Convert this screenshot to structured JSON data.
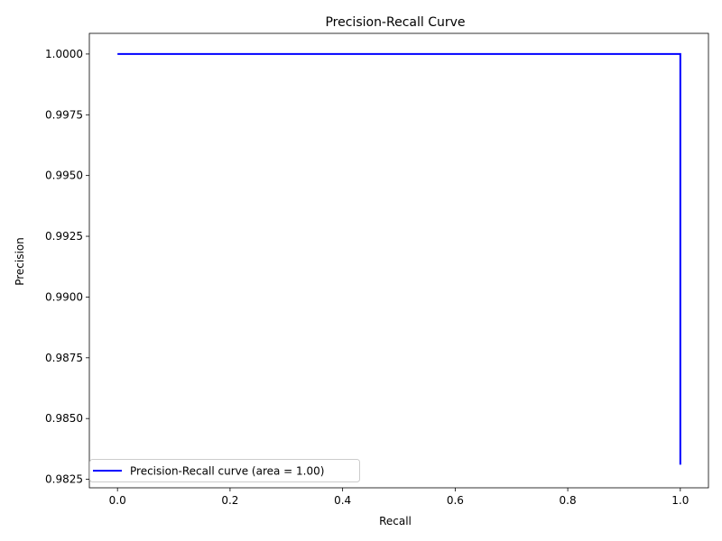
{
  "chart_data": {
    "type": "line",
    "title": "Precision-Recall Curve",
    "xlabel": "Recall",
    "ylabel": "Precision",
    "xlim": [
      -0.05,
      1.05
    ],
    "ylim": [
      0.98215,
      1.00085
    ],
    "x_ticks": [
      0.0,
      0.2,
      0.4,
      0.6,
      0.8,
      1.0
    ],
    "x_tick_labels": [
      "0.0",
      "0.2",
      "0.4",
      "0.6",
      "0.8",
      "1.0"
    ],
    "y_ticks": [
      0.9825,
      0.985,
      0.9875,
      0.99,
      0.9925,
      0.995,
      0.9975,
      1.0
    ],
    "y_tick_labels": [
      "0.9825",
      "0.9850",
      "0.9875",
      "0.9900",
      "0.9925",
      "0.9950",
      "0.9975",
      "1.0000"
    ],
    "grid": false,
    "legend_position": "lower-left",
    "series": [
      {
        "name": "Precision-Recall curve (area = 1.00)",
        "color": "#0000ff",
        "x": [
          0.0,
          1.0,
          1.0
        ],
        "y": [
          1.0,
          1.0,
          0.9831
        ]
      }
    ]
  }
}
